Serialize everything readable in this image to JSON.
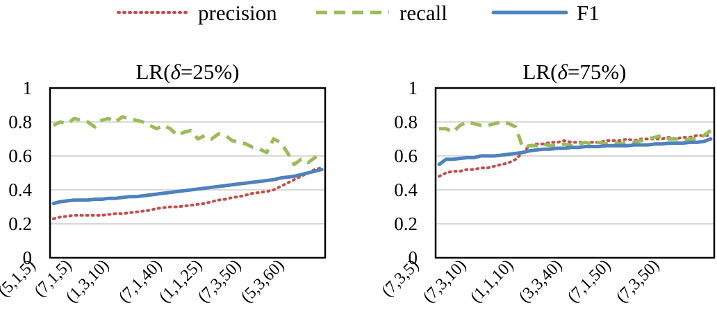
{
  "legend": {
    "items": [
      {
        "label": "precision",
        "color": "#c0504d",
        "style": "dotted"
      },
      {
        "label": "recall",
        "color": "#9bbb59",
        "style": "dashed"
      },
      {
        "label": "F1",
        "color": "#4f81bd",
        "style": "solid"
      }
    ]
  },
  "chart_data": [
    {
      "type": "line",
      "title": "LR(δ=25%)",
      "title_prefix": "LR(",
      "title_symbol": "δ",
      "title_suffix": "=25%)",
      "xlabel": "",
      "ylabel": "",
      "ylim": [
        0,
        1
      ],
      "yticks": [
        "0",
        "0.2",
        "0.4",
        "0.6",
        "0.8",
        "1"
      ],
      "grid": true,
      "xtick_labels": [
        "(5,1,5)",
        "(7,1,5)",
        "(1,3,10)",
        "(7,1,40)",
        "(1,1,25)",
        "(7,3,50)",
        "(5,3,60)"
      ],
      "n_points": 40,
      "series": [
        {
          "name": "precision",
          "color": "#c0504d",
          "style": "dotted",
          "values": [
            0.23,
            0.24,
            0.245,
            0.25,
            0.25,
            0.25,
            0.25,
            0.25,
            0.255,
            0.26,
            0.26,
            0.265,
            0.27,
            0.275,
            0.28,
            0.29,
            0.295,
            0.3,
            0.3,
            0.305,
            0.31,
            0.315,
            0.32,
            0.33,
            0.34,
            0.345,
            0.355,
            0.36,
            0.37,
            0.38,
            0.385,
            0.39,
            0.4,
            0.42,
            0.44,
            0.46,
            0.48,
            0.5,
            0.52,
            0.53
          ]
        },
        {
          "name": "recall",
          "color": "#9bbb59",
          "style": "dashed",
          "values": [
            0.78,
            0.8,
            0.79,
            0.82,
            0.81,
            0.8,
            0.77,
            0.81,
            0.82,
            0.8,
            0.83,
            0.82,
            0.81,
            0.8,
            0.78,
            0.76,
            0.78,
            0.76,
            0.72,
            0.74,
            0.75,
            0.7,
            0.72,
            0.7,
            0.73,
            0.72,
            0.69,
            0.68,
            0.67,
            0.65,
            0.64,
            0.62,
            0.7,
            0.68,
            0.62,
            0.55,
            0.58,
            0.56,
            0.59,
            0.62
          ]
        },
        {
          "name": "F1",
          "color": "#4f81bd",
          "style": "solid",
          "values": [
            0.32,
            0.33,
            0.335,
            0.34,
            0.34,
            0.34,
            0.345,
            0.345,
            0.35,
            0.35,
            0.355,
            0.36,
            0.36,
            0.365,
            0.37,
            0.375,
            0.38,
            0.385,
            0.39,
            0.395,
            0.4,
            0.405,
            0.41,
            0.415,
            0.42,
            0.425,
            0.43,
            0.435,
            0.44,
            0.445,
            0.45,
            0.455,
            0.46,
            0.47,
            0.475,
            0.48,
            0.49,
            0.5,
            0.51,
            0.52
          ]
        }
      ]
    },
    {
      "type": "line",
      "title": "LR(δ=75%)",
      "title_prefix": "LR(",
      "title_symbol": "δ",
      "title_suffix": "=75%)",
      "xlabel": "",
      "ylabel": "",
      "ylim": [
        0,
        1
      ],
      "yticks": [
        "0",
        "0.2",
        "0.4",
        "0.6",
        "0.8",
        "1"
      ],
      "grid": true,
      "xtick_labels": [
        "(7,3,5)",
        "(7,3,10)",
        "(1,1,10)",
        "(3,3,40)",
        "(7,1,50)",
        "(7,3,50)"
      ],
      "n_points": 40,
      "series": [
        {
          "name": "precision",
          "color": "#c0504d",
          "style": "dotted",
          "values": [
            0.48,
            0.5,
            0.51,
            0.51,
            0.52,
            0.52,
            0.53,
            0.53,
            0.54,
            0.55,
            0.56,
            0.58,
            0.62,
            0.66,
            0.67,
            0.67,
            0.68,
            0.68,
            0.69,
            0.68,
            0.68,
            0.68,
            0.68,
            0.68,
            0.69,
            0.69,
            0.69,
            0.7,
            0.69,
            0.7,
            0.7,
            0.7,
            0.7,
            0.71,
            0.7,
            0.71,
            0.71,
            0.72,
            0.72,
            0.72
          ]
        },
        {
          "name": "recall",
          "color": "#9bbb59",
          "style": "dashed",
          "values": [
            0.76,
            0.76,
            0.74,
            0.78,
            0.8,
            0.79,
            0.78,
            0.78,
            0.79,
            0.8,
            0.79,
            0.77,
            0.65,
            0.66,
            0.66,
            0.67,
            0.66,
            0.66,
            0.67,
            0.66,
            0.67,
            0.68,
            0.67,
            0.68,
            0.67,
            0.68,
            0.67,
            0.68,
            0.68,
            0.69,
            0.7,
            0.71,
            0.72,
            0.7,
            0.7,
            0.69,
            0.7,
            0.7,
            0.72,
            0.75
          ]
        },
        {
          "name": "F1",
          "color": "#4f81bd",
          "style": "solid",
          "values": [
            0.55,
            0.58,
            0.58,
            0.585,
            0.59,
            0.59,
            0.6,
            0.6,
            0.6,
            0.605,
            0.61,
            0.615,
            0.62,
            0.63,
            0.635,
            0.64,
            0.64,
            0.645,
            0.645,
            0.65,
            0.65,
            0.655,
            0.655,
            0.655,
            0.66,
            0.66,
            0.66,
            0.66,
            0.665,
            0.665,
            0.665,
            0.67,
            0.67,
            0.675,
            0.675,
            0.675,
            0.68,
            0.68,
            0.685,
            0.7
          ]
        }
      ]
    }
  ]
}
